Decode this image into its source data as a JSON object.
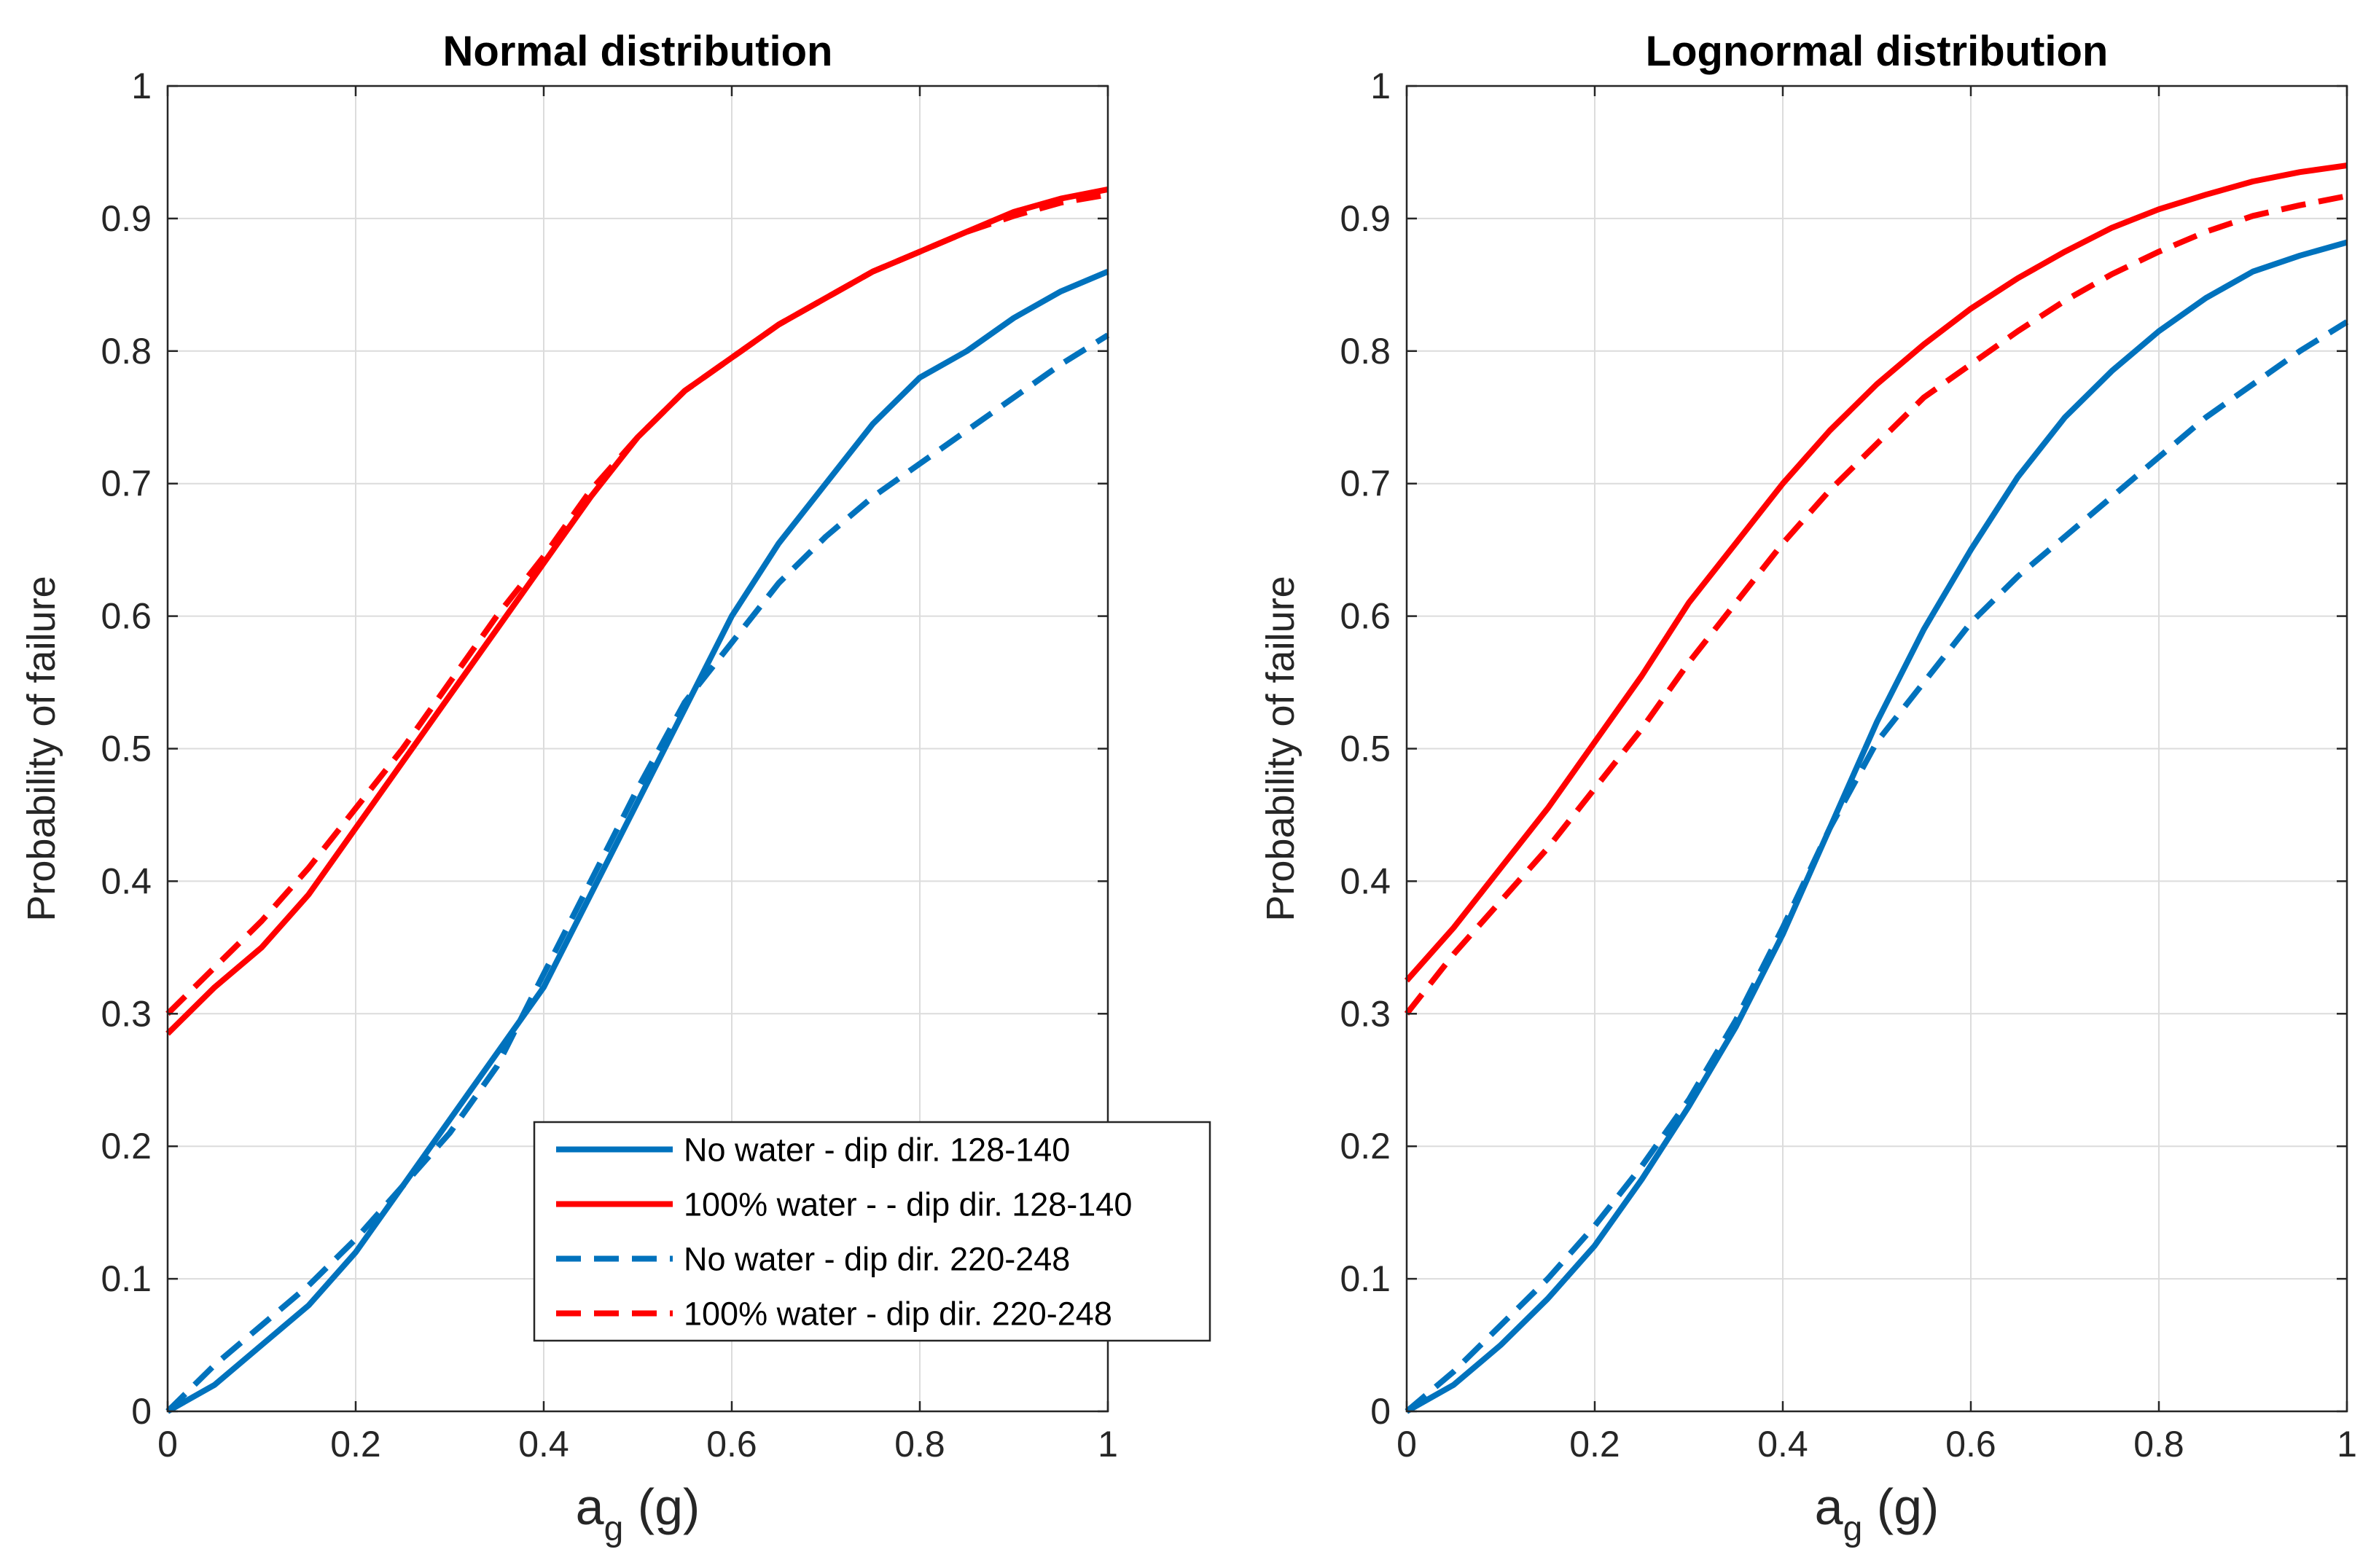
{
  "chart_data": [
    {
      "type": "line",
      "title": "Normal distribution",
      "xlabel_main": "a",
      "xlabel_sub": "g",
      "xlabel_unit": " (g)",
      "ylabel": "Probability of failure",
      "xlim": [
        0,
        1
      ],
      "ylim": [
        0,
        1
      ],
      "grid": true,
      "xticks": [
        0,
        0.2,
        0.4,
        0.6,
        0.8,
        1
      ],
      "xtick_labels": [
        "0",
        "0.2",
        "0.4",
        "0.6",
        "0.8",
        "1"
      ],
      "yticks": [
        0,
        0.1,
        0.2,
        0.3,
        0.4,
        0.5,
        0.6,
        0.7,
        0.8,
        0.9,
        1
      ],
      "ytick_labels": [
        "0",
        "0.1",
        "0.2",
        "0.3",
        "0.4",
        "0.5",
        "0.6",
        "0.7",
        "0.8",
        "0.9",
        "1"
      ],
      "legend_position": "bottom-right",
      "x": [
        0,
        0.05,
        0.1,
        0.15,
        0.2,
        0.25,
        0.3,
        0.35,
        0.4,
        0.45,
        0.5,
        0.55,
        0.6,
        0.65,
        0.7,
        0.75,
        0.8,
        0.85,
        0.9,
        0.95,
        1
      ],
      "series": [
        {
          "name": "No water - dip dir. 128-140",
          "color": "#0072BD",
          "dash": "solid",
          "values": [
            0,
            0.02,
            0.05,
            0.08,
            0.12,
            0.17,
            0.22,
            0.27,
            0.32,
            0.39,
            0.46,
            0.53,
            0.6,
            0.655,
            0.7,
            0.745,
            0.78,
            0.8,
            0.825,
            0.845,
            0.86
          ]
        },
        {
          "name": "100% water - - dip dir. 128-140",
          "color": "#FF0000",
          "dash": "solid",
          "values": [
            0.285,
            0.32,
            0.35,
            0.39,
            0.44,
            0.49,
            0.54,
            0.59,
            0.64,
            0.69,
            0.735,
            0.77,
            0.795,
            0.82,
            0.84,
            0.86,
            0.875,
            0.89,
            0.905,
            0.915,
            0.922
          ]
        },
        {
          "name": "No water -  dip dir. 220-248",
          "color": "#0072BD",
          "dash": "dashed",
          "values": [
            0,
            0.035,
            0.065,
            0.095,
            0.13,
            0.17,
            0.21,
            0.26,
            0.33,
            0.4,
            0.47,
            0.535,
            0.58,
            0.625,
            0.66,
            0.69,
            0.715,
            0.74,
            0.765,
            0.79,
            0.812
          ]
        },
        {
          "name": "100% water -  dip dir. 220-248",
          "color": "#FF0000",
          "dash": "dashed",
          "values": [
            0.3,
            0.335,
            0.37,
            0.41,
            0.455,
            0.5,
            0.55,
            0.6,
            0.645,
            0.695,
            0.735,
            0.77,
            0.795,
            0.82,
            0.84,
            0.86,
            0.875,
            0.89,
            0.902,
            0.912,
            0.918
          ]
        }
      ]
    },
    {
      "type": "line",
      "title": "Lognormal distribution",
      "xlabel_main": "a",
      "xlabel_sub": "g",
      "xlabel_unit": " (g)",
      "ylabel": "Probability of failure",
      "xlim": [
        0,
        1
      ],
      "ylim": [
        0,
        1
      ],
      "grid": true,
      "xticks": [
        0,
        0.2,
        0.4,
        0.6,
        0.8,
        1
      ],
      "xtick_labels": [
        "0",
        "0.2",
        "0.4",
        "0.6",
        "0.8",
        "1"
      ],
      "yticks": [
        0,
        0.1,
        0.2,
        0.3,
        0.4,
        0.5,
        0.6,
        0.7,
        0.8,
        0.9,
        1
      ],
      "ytick_labels": [
        "0",
        "0.1",
        "0.2",
        "0.3",
        "0.4",
        "0.5",
        "0.6",
        "0.7",
        "0.8",
        "0.9",
        "1"
      ],
      "x": [
        0,
        0.05,
        0.1,
        0.15,
        0.2,
        0.25,
        0.3,
        0.35,
        0.4,
        0.45,
        0.5,
        0.55,
        0.6,
        0.65,
        0.7,
        0.75,
        0.8,
        0.85,
        0.9,
        0.95,
        1
      ],
      "series": [
        {
          "name": "No water - dip dir. 128-140",
          "color": "#0072BD",
          "dash": "solid",
          "values": [
            0,
            0.02,
            0.05,
            0.085,
            0.125,
            0.175,
            0.23,
            0.29,
            0.36,
            0.44,
            0.52,
            0.59,
            0.65,
            0.705,
            0.75,
            0.785,
            0.815,
            0.84,
            0.86,
            0.872,
            0.882
          ]
        },
        {
          "name": "100% water - - dip dir. 128-140",
          "color": "#FF0000",
          "dash": "solid",
          "values": [
            0.325,
            0.365,
            0.41,
            0.455,
            0.505,
            0.555,
            0.61,
            0.655,
            0.7,
            0.74,
            0.775,
            0.805,
            0.832,
            0.855,
            0.875,
            0.893,
            0.907,
            0.918,
            0.928,
            0.935,
            0.94
          ]
        },
        {
          "name": "No water -  dip dir. 220-248",
          "color": "#0072BD",
          "dash": "dashed",
          "values": [
            0,
            0.03,
            0.065,
            0.1,
            0.14,
            0.185,
            0.235,
            0.295,
            0.365,
            0.44,
            0.505,
            0.55,
            0.595,
            0.63,
            0.66,
            0.69,
            0.72,
            0.75,
            0.775,
            0.8,
            0.822
          ]
        },
        {
          "name": "100% water -  dip dir. 220-248",
          "color": "#FF0000",
          "dash": "dashed",
          "values": [
            0.3,
            0.345,
            0.385,
            0.425,
            0.47,
            0.515,
            0.565,
            0.61,
            0.655,
            0.695,
            0.73,
            0.765,
            0.79,
            0.815,
            0.838,
            0.858,
            0.875,
            0.89,
            0.902,
            0.91,
            0.917
          ]
        }
      ]
    }
  ]
}
